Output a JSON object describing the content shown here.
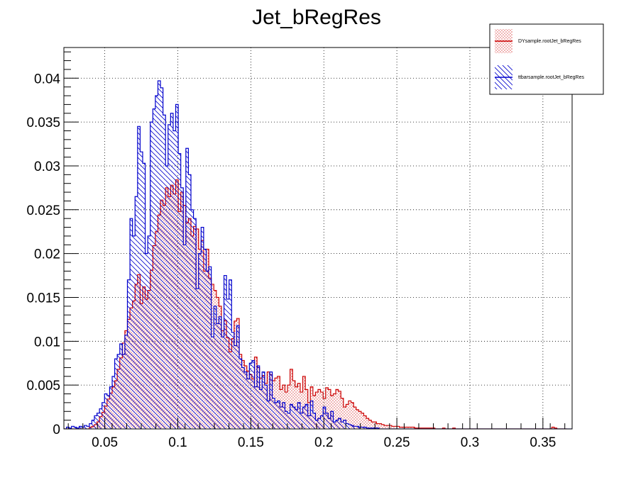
{
  "chart_data": {
    "type": "histogram",
    "title": "Jet_bRegRes",
    "xlabel": "",
    "ylabel": "",
    "xlim": [
      0.022,
      0.37
    ],
    "ylim": [
      0,
      0.0435
    ],
    "grid": true,
    "legend_position": "top-right",
    "x_ticks": [
      {
        "value": 0.05,
        "label": "0.05"
      },
      {
        "value": 0.1,
        "label": "0.1"
      },
      {
        "value": 0.15,
        "label": "0.15"
      },
      {
        "value": 0.2,
        "label": "0.2"
      },
      {
        "value": 0.25,
        "label": "0.25"
      },
      {
        "value": 0.3,
        "label": "0.3"
      },
      {
        "value": 0.35,
        "label": "0.35"
      }
    ],
    "y_ticks": [
      {
        "value": 0,
        "label": "0"
      },
      {
        "value": 0.005,
        "label": "0.005"
      },
      {
        "value": 0.01,
        "label": "0.01"
      },
      {
        "value": 0.015,
        "label": "0.015"
      },
      {
        "value": 0.02,
        "label": "0.02"
      },
      {
        "value": 0.025,
        "label": "0.025"
      },
      {
        "value": 0.03,
        "label": "0.03"
      },
      {
        "value": 0.035,
        "label": "0.035"
      },
      {
        "value": 0.04,
        "label": "0.04"
      }
    ],
    "bin_start": 0.022,
    "bin_width": 0.00174,
    "series": [
      {
        "name": "DYsample.rootJet_bRegRes",
        "color": "#cc0000",
        "fill": "dots",
        "values": [
          0,
          0,
          0,
          0,
          0,
          0,
          0,
          0,
          0,
          0,
          0.0002,
          0.0003,
          0.0005,
          0.0008,
          0.0014,
          0.0019,
          0.0026,
          0.0034,
          0.0041,
          0.0048,
          0.0055,
          0.0068,
          0.0081,
          0.0098,
          0.0112,
          0.0125,
          0.0138,
          0.0146,
          0.0165,
          0.0176,
          0.0143,
          0.0162,
          0.0148,
          0.0158,
          0.0181,
          0.0209,
          0.0225,
          0.0244,
          0.0261,
          0.0255,
          0.0275,
          0.0265,
          0.0278,
          0.0268,
          0.0284,
          0.0248,
          0.027,
          0.0255,
          0.0235,
          0.024,
          0.022,
          0.0231,
          0.0228,
          0.0205,
          0.0215,
          0.018,
          0.0205,
          0.0172,
          0.0165,
          0.0158,
          0.015,
          0.014,
          0.0112,
          0.0124,
          0.0104,
          0.0088,
          0.0103,
          0.0123,
          0.0126,
          0.0085,
          0.0078,
          0.0072,
          0.0066,
          0.0062,
          0.0057,
          0.0082,
          0.007,
          0.0058,
          0.0061,
          0.0052,
          0.0065,
          0.0062,
          0.0055,
          0.0058,
          0.006,
          0.0045,
          0.005,
          0.0042,
          0.005,
          0.0068,
          0.0055,
          0.0048,
          0.0052,
          0.0042,
          0.006,
          0.0045,
          0.003,
          0.0048,
          0.0038,
          0.0042,
          0.0045,
          0.0042,
          0.0035,
          0.0047,
          0.0045,
          0.0038,
          0.004,
          0.0045,
          0.0043,
          0.0035,
          0.0025,
          0.0028,
          0.0032,
          0.003,
          0.0025,
          0.0022,
          0.002,
          0.0018,
          0.0015,
          0.0012,
          0.001,
          0.0008,
          0.0008,
          0.0006,
          0.0006,
          0.0005,
          0.0004,
          0.0004,
          0.0004,
          0.0003,
          0.0003,
          0.0003,
          0.0002,
          0.0002,
          0.0002,
          0.0002,
          0.0002,
          0.0002,
          0.0001,
          0.0001,
          0.0001,
          0.0001,
          0.0001,
          0.0001,
          0.0001,
          0.0001,
          0,
          0,
          0,
          0.0001,
          0,
          0,
          0,
          0.0001,
          0,
          0,
          0,
          0,
          0,
          0,
          0,
          0,
          0,
          0,
          0,
          0,
          0,
          0,
          0,
          0,
          0,
          0,
          0,
          0,
          0,
          0,
          0,
          0,
          0,
          0,
          0,
          0,
          0,
          0,
          0,
          0,
          0,
          0,
          0,
          0,
          0,
          0,
          0.0002,
          0.0001,
          0,
          0,
          0,
          0
        ]
      },
      {
        "name": "ttbarsample.rootJet_bRegRes",
        "color": "#0000cc",
        "fill": "hatch",
        "values": [
          0,
          0.0002,
          0.0001,
          0.0003,
          0.0002,
          0.0001,
          0.0003,
          0.0002,
          0.0004,
          0.0003,
          0.0006,
          0.001,
          0.0015,
          0.0018,
          0.0023,
          0.003,
          0.004,
          0.0038,
          0.0048,
          0.006,
          0.008,
          0.0085,
          0.0097,
          0.0085,
          0.0107,
          0.017,
          0.024,
          0.022,
          0.0265,
          0.0345,
          0.0316,
          0.0303,
          0.02,
          0.022,
          0.035,
          0.0365,
          0.038,
          0.0397,
          0.0389,
          0.0358,
          0.03,
          0.0347,
          0.036,
          0.034,
          0.037,
          0.0314,
          0.0275,
          0.021,
          0.032,
          0.029,
          0.025,
          0.024,
          0.016,
          0.02,
          0.023,
          0.0205,
          0.018,
          0.0185,
          0.0105,
          0.014,
          0.012,
          0.0128,
          0.0105,
          0.0175,
          0.0148,
          0.017,
          0.011,
          0.0095,
          0.0118,
          0.008,
          0.007,
          0.0065,
          0.0057,
          0.0075,
          0.0078,
          0.0048,
          0.0072,
          0.0045,
          0.0065,
          0.005,
          0.0032,
          0.0065,
          0.0035,
          0.003,
          0.0032,
          0.0025,
          0.003,
          0.002,
          0.0018,
          0.0028,
          0.0025,
          0.0022,
          0.003,
          0.0018,
          0.0025,
          0.0028,
          0.0015,
          0.0032,
          0.0018,
          0.001,
          0.0012,
          0.0015,
          0.0025,
          0.0018,
          0.0012,
          0.002,
          0.0008,
          0.001,
          0.0012,
          0.0008,
          0.001,
          0.0006,
          0.0005,
          0.0004,
          0.0003,
          0.0003,
          0.0002,
          0.0002,
          0.0002,
          0.0001,
          0.0001,
          0.0001,
          0.0001,
          0.0001,
          0,
          0,
          0,
          0,
          0,
          0,
          0,
          0,
          0,
          0,
          0,
          0,
          0,
          0,
          0,
          0,
          0,
          0,
          0,
          0,
          0,
          0,
          0,
          0,
          0,
          0,
          0,
          0,
          0,
          0,
          0,
          0,
          0,
          0,
          0,
          0,
          0,
          0,
          0,
          0,
          0,
          0,
          0,
          0,
          0,
          0,
          0,
          0,
          0,
          0,
          0,
          0,
          0,
          0,
          0,
          0,
          0,
          0,
          0,
          0,
          0,
          0,
          0,
          0,
          0,
          0,
          0,
          0,
          0,
          0,
          0,
          0,
          0,
          0,
          0,
          0,
          0,
          0,
          0,
          0,
          0,
          0,
          0,
          0,
          0,
          0
        ]
      }
    ]
  }
}
